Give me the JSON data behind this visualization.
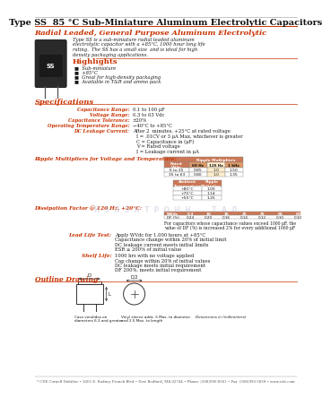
{
  "title": "Type SS  85 °C Sub-Miniature Aluminum Electrolytic Capacitors",
  "subtitle": "Radial Leaded, General Purpose Aluminum Electrolytic",
  "desc_lines": [
    "Type SS is a sub-miniature radial leaded aluminum",
    "electrolytic capacitor with a +85°C, 1000 hour long life",
    "rating.  The SS has a small size  and is ideal for high",
    "density packaging applications."
  ],
  "highlights_title": "Highlights",
  "highlights": [
    "Sub-miniature",
    "+85°C",
    "Great for high-density packaging",
    "Available in T&R and ammo pack"
  ],
  "specs_title": "Specifications",
  "specs": [
    [
      "Capacitance Range:",
      "0.1 to 100 μF"
    ],
    [
      "Voltage Range:",
      "6.3 to 63 Vdc"
    ],
    [
      "Capacitance Tolerance:",
      "±20%"
    ],
    [
      "Operating Temperature Range:",
      "−40°C to +85°C"
    ],
    [
      "DC Leakage Current:",
      "After 2  minutes, +25°C at rated voltage"
    ]
  ],
  "dc_leakage_extra": [
    "I = .01CV or 3 μA Max, whichever is greater",
    "C = Capacitance in (μF)",
    "V = Rated voltage",
    "I = Leakage current in μA"
  ],
  "ripple_title": "Ripple Multipliers for Voltage and Temperature:",
  "ripple_table1_header_col1": "Rated\nVVdc",
  "ripple_table1_header_top": "Ripple Multipliers",
  "ripple_table1_header_freqs": [
    "60 Hz",
    "125 Hz",
    "1 kHz"
  ],
  "ripple_table1_rows": [
    [
      "6 to 25",
      "0.85",
      "1.0",
      "1.50"
    ],
    [
      "35 to 63",
      "0.80",
      "1.0",
      "1.35"
    ]
  ],
  "ripple_table2_header": [
    "Ambient\nTemperature",
    "Ripple\nMultiplier"
  ],
  "ripple_table2_rows": [
    [
      "+85°C",
      "1.00"
    ],
    [
      "+75°C",
      "1.14"
    ],
    [
      "+55°C",
      "1.25"
    ]
  ],
  "dissipation_title": "Dissipation Factor @ 120 Hz, +20°C:",
  "dissipation_header": [
    "WVdc",
    "6.3",
    "10",
    "16",
    "25",
    "35",
    "50",
    "63"
  ],
  "dissipation_row": [
    "DF (%)",
    "0.24",
    "0.20",
    "0.16",
    "0.14",
    "0.12",
    "0.10",
    "0.10"
  ],
  "dissipation_note_lines": [
    "For capacitors whose capacitance values exceed 1000 μF, the",
    "value of DF (%) is increased 2% for every additional 1000 μF"
  ],
  "lead_life_title": "Lead Life Test:",
  "lead_life": [
    "Apply WVdc for 1,000 hours at +85°C",
    "Capacitance change within 20% of initial limit",
    "DC leakage current meets initial limits",
    "ESR ≤ 200% of initial value"
  ],
  "shelf_life_title": "Shelf Life:",
  "shelf_life": [
    "1000 hrs with no voltage applied",
    "Cap change within 20% of initial values",
    "DC leakage meets initial requirement",
    "DF 200%, meets initial requirement"
  ],
  "outline_title": "Outline Drawing",
  "outline_notes": [
    "Case vendidos on",
    "diameters 6.3 and greater"
  ],
  "outline_note2": [
    "Vinyl sleeve adds .5 Max. to diameter",
    "and 2.5 Max. to length"
  ],
  "outline_dim_note": "Dimensions in (millimeters)",
  "footer": "* CDE Cornell Dubilier • 1605 E. Rodney French Blvd • New Bedford, MA 02744 • Phone: (508)996-8561 • Fax: (508)996-3830 • www.cde.com",
  "red_color": "#C83200",
  "table_header_color": "#CC6633",
  "bg_color": "#FFFFFF",
  "text_color": "#1a1a1a",
  "watermark_color": "#AAAACC"
}
